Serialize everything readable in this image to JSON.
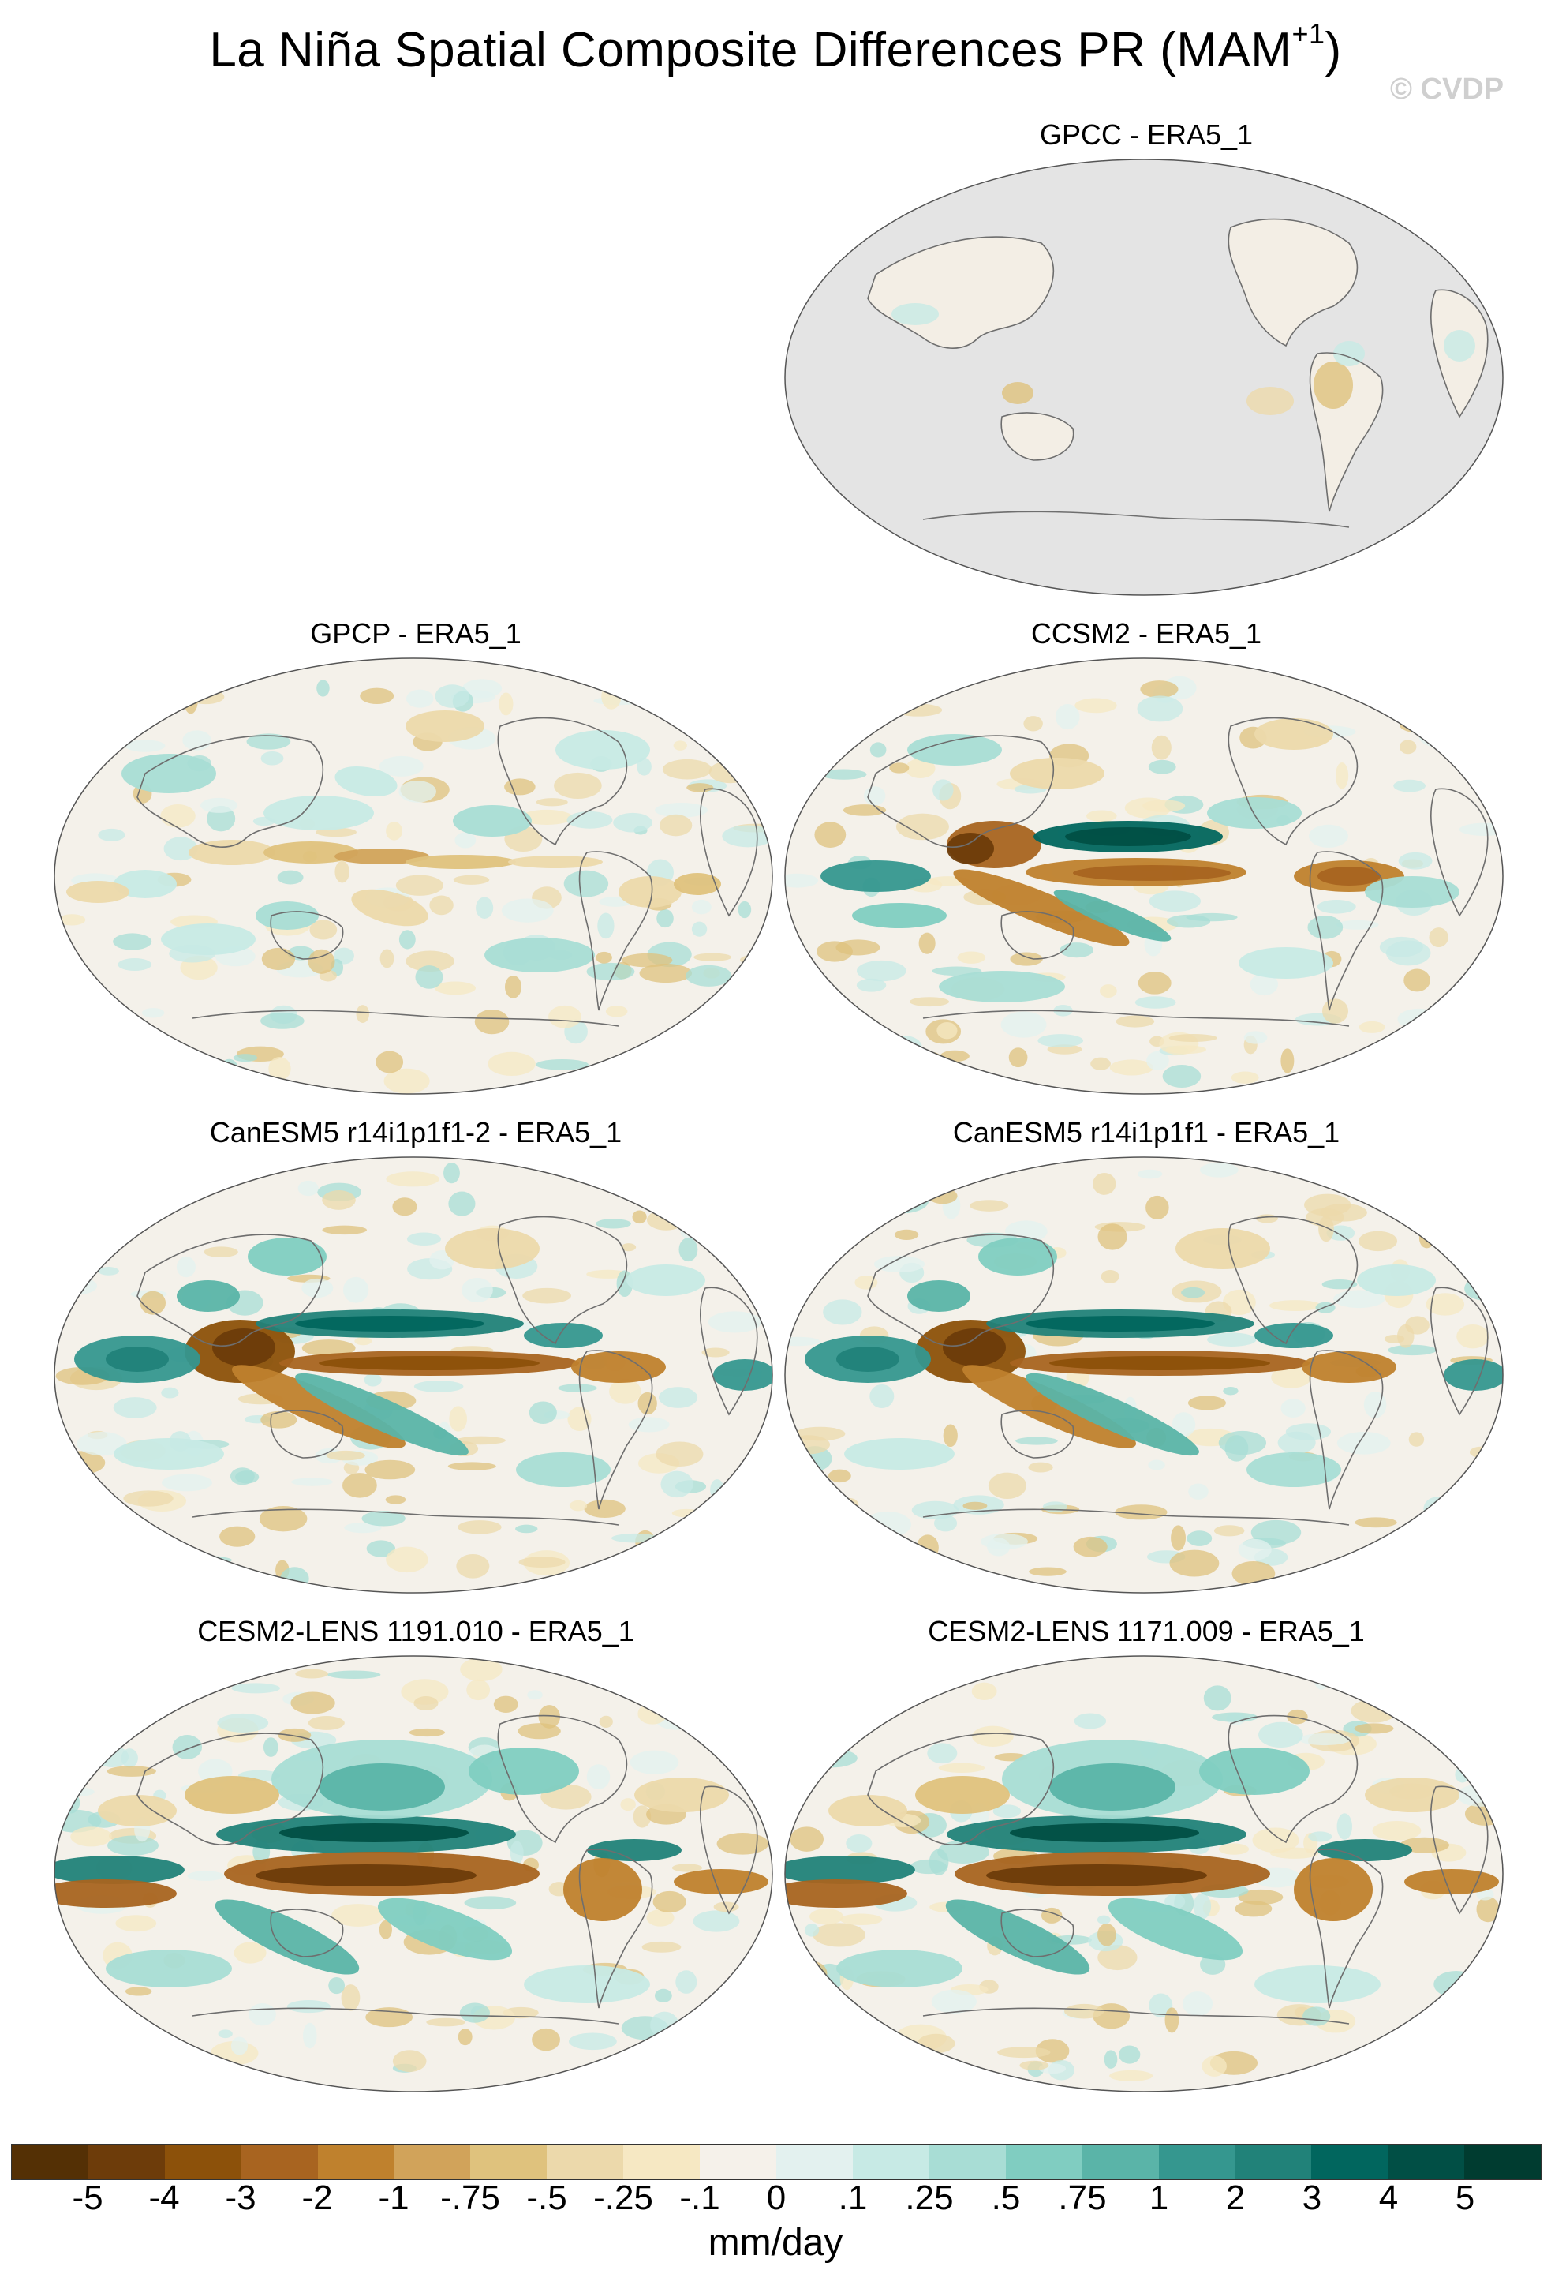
{
  "title_main": "La Niña Spatial Composite Differences PR (MAM",
  "title_sup": "+1",
  "title_close": ")",
  "watermark": "© CVDP",
  "panels": [
    {
      "title": "GPCC - ERA5_1",
      "style": "land"
    },
    {
      "title": "GPCP - ERA5_1",
      "style": "weak"
    },
    {
      "title": "CCSM2 - ERA5_1",
      "style": "medium"
    },
    {
      "title": "CanESM5 r14i1p1f1-2 - ERA5_1",
      "style": "strong"
    },
    {
      "title": "CanESM5 r14i1p1f1 - ERA5_1",
      "style": "strong"
    },
    {
      "title": "CESM2-LENS 1191.010 - ERA5_1",
      "style": "cesm"
    },
    {
      "title": "CESM2-LENS 1171.009 - ERA5_1",
      "style": "cesm"
    }
  ],
  "colorbar": {
    "colors": [
      "#543005",
      "#6d3c0a",
      "#8c510a",
      "#a86420",
      "#bf812d",
      "#d1a35a",
      "#dfc27d",
      "#ecd9ab",
      "#f6e8c3",
      "#f5f1ea",
      "#e3f1ef",
      "#c7eae5",
      "#a8ddd5",
      "#80cdc1",
      "#5ab4a8",
      "#35978f",
      "#218279",
      "#01665e",
      "#014f45",
      "#003c30"
    ],
    "labels": [
      "-5",
      "-4",
      "-3",
      "-2",
      "-1",
      "-.75",
      "-.5",
      "-.25",
      "-.1",
      "0",
      ".1",
      ".25",
      ".5",
      ".75",
      "1",
      "2",
      "3",
      "4",
      "5"
    ],
    "units": "mm/day"
  }
}
